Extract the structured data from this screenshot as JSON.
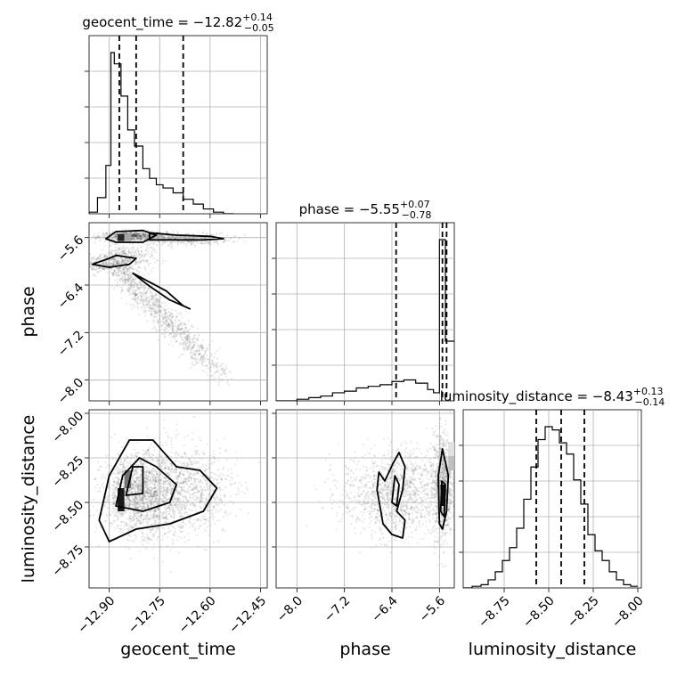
{
  "chart_data": {
    "type": "corner",
    "parameters": [
      "geocent_time",
      "phase",
      "luminosity_distance"
    ],
    "titles": [
      {
        "param": "geocent_time",
        "lhs": "geocent_time = ",
        "value": "−12.82",
        "plus": "+0.14",
        "minus": "−0.05"
      },
      {
        "param": "phase",
        "lhs": "phase = ",
        "value": "−5.55",
        "plus": "+0.07",
        "minus": "−0.78"
      },
      {
        "param": "luminosity_distance",
        "lhs": "luminosity_distance = ",
        "value": "−8.43",
        "plus": "+0.13",
        "minus": "−0.14"
      }
    ],
    "axes": {
      "geocent_time": {
        "range": [
          -12.96,
          -12.43
        ],
        "ticks": [
          -12.9,
          -12.75,
          -12.6,
          -12.45
        ],
        "tick_labels": [
          "−12.90",
          "−12.75",
          "−12.60",
          "−12.45"
        ]
      },
      "phase": {
        "range": [
          -8.35,
          -5.35
        ],
        "ticks": [
          -8.0,
          -7.2,
          -6.4,
          -5.6
        ],
        "tick_labels": [
          "−8.0",
          "−7.2",
          "−6.4",
          "−5.6"
        ]
      },
      "luminosity_distance": {
        "range": [
          -8.98,
          -7.98
        ],
        "ticks": [
          -8.75,
          -8.5,
          -8.25,
          -8.0
        ],
        "tick_labels": [
          "−8.75",
          "−8.50",
          "−8.25",
          "−8.00"
        ]
      }
    },
    "histograms": {
      "geocent_time": {
        "bin_edges": [
          -12.96,
          -12.935,
          -12.91,
          -12.895,
          -12.885,
          -12.865,
          -12.845,
          -12.825,
          -12.8,
          -12.78,
          -12.76,
          -12.74,
          -12.71,
          -12.68,
          -12.65,
          -12.62,
          -12.59,
          -12.56,
          -12.53
        ],
        "counts": [
          0.01,
          0.1,
          0.3,
          1.0,
          0.93,
          0.73,
          0.52,
          0.42,
          0.28,
          0.22,
          0.18,
          0.16,
          0.13,
          0.09,
          0.06,
          0.03,
          0.01,
          0.0
        ],
        "quantiles": [
          -12.87,
          -12.82,
          -12.68
        ]
      },
      "phase": {
        "bin_edges": [
          -8.35,
          -8.0,
          -7.8,
          -7.6,
          -7.4,
          -7.2,
          -7.0,
          -6.8,
          -6.6,
          -6.4,
          -6.2,
          -6.0,
          -5.8,
          -5.7,
          -5.6,
          -5.5,
          -5.35
        ],
        "counts": [
          0.0,
          0.01,
          0.02,
          0.03,
          0.05,
          0.06,
          0.08,
          0.09,
          0.1,
          0.12,
          0.13,
          0.11,
          0.07,
          0.05,
          1.0,
          0.37
        ],
        "quantiles": [
          -6.33,
          -5.55,
          -5.48
        ]
      },
      "luminosity_distance": {
        "bin_edges": [
          -8.98,
          -8.93,
          -8.88,
          -8.84,
          -8.8,
          -8.76,
          -8.72,
          -8.68,
          -8.64,
          -8.6,
          -8.56,
          -8.52,
          -8.48,
          -8.44,
          -8.4,
          -8.36,
          -8.32,
          -8.28,
          -8.24,
          -8.2,
          -8.16,
          -8.12,
          -8.08,
          -8.04,
          -8.0
        ],
        "counts": [
          0.0,
          0.01,
          0.02,
          0.05,
          0.1,
          0.17,
          0.25,
          0.37,
          0.55,
          0.75,
          0.92,
          1.0,
          0.98,
          0.9,
          0.83,
          0.67,
          0.52,
          0.33,
          0.23,
          0.17,
          0.1,
          0.05,
          0.02,
          0.01
        ],
        "quantiles": [
          -8.57,
          -8.43,
          -8.3
        ]
      }
    },
    "scatter_pairs": [
      {
        "x": "geocent_time",
        "y": "phase",
        "clusters": [
          {
            "type": "blob",
            "cx": -12.83,
            "cy": -5.58,
            "sx": 0.05,
            "sy": 0.04,
            "n": 700
          },
          {
            "type": "blob",
            "cx": -12.68,
            "cy": -5.62,
            "sx": 0.07,
            "sy": 0.05,
            "n": 450
          },
          {
            "type": "blob",
            "cx": -12.85,
            "cy": -5.95,
            "sx": 0.04,
            "sy": 0.12,
            "n": 350
          },
          {
            "type": "blob",
            "cx": -12.93,
            "cy": -6.05,
            "sx": 0.03,
            "sy": 0.08,
            "n": 200
          },
          {
            "type": "line",
            "x0": -12.89,
            "y0": -6.05,
            "x1": -12.63,
            "y1": -7.55,
            "width": 0.045,
            "n": 900
          },
          {
            "type": "line",
            "x0": -12.63,
            "y0": -7.5,
            "x1": -12.55,
            "y1": -7.95,
            "width": 0.04,
            "n": 120
          }
        ],
        "contours": [
          [
            [
              -12.88,
              -5.5
            ],
            [
              -12.8,
              -5.48
            ],
            [
              -12.76,
              -5.56
            ],
            [
              -12.8,
              -5.68
            ],
            [
              -12.88,
              -5.68
            ],
            [
              -12.91,
              -5.62
            ],
            [
              -12.88,
              -5.5
            ]
          ],
          [
            [
              -12.78,
              -5.52
            ],
            [
              -12.7,
              -5.56
            ],
            [
              -12.6,
              -5.58
            ],
            [
              -12.56,
              -5.62
            ],
            [
              -12.62,
              -5.64
            ],
            [
              -12.7,
              -5.64
            ],
            [
              -12.78,
              -5.64
            ],
            [
              -12.78,
              -5.52
            ]
          ],
          [
            [
              -12.88,
              -5.9
            ],
            [
              -12.82,
              -5.95
            ],
            [
              -12.84,
              -6.05
            ],
            [
              -12.9,
              -6.1
            ],
            [
              -12.95,
              -6.05
            ],
            [
              -12.9,
              -5.95
            ],
            [
              -12.88,
              -5.9
            ]
          ],
          [
            [
              -12.83,
              -6.2
            ],
            [
              -12.73,
              -6.5
            ],
            [
              -12.68,
              -6.75
            ],
            [
              -12.66,
              -6.8
            ],
            [
              -12.72,
              -6.65
            ],
            [
              -12.78,
              -6.42
            ],
            [
              -12.83,
              -6.2
            ]
          ]
        ],
        "hist2d_cells": [
          {
            "x0": -12.875,
            "x1": -12.855,
            "y0": -5.66,
            "y1": -5.54,
            "shade": 0.85
          },
          {
            "x0": -12.855,
            "x1": -12.835,
            "y0": -5.66,
            "y1": -5.54,
            "shade": 0.35
          }
        ]
      },
      {
        "x": "geocent_time",
        "y": "luminosity_distance",
        "clusters": [
          {
            "type": "blob",
            "cx": -12.82,
            "cy": -8.45,
            "sx": 0.05,
            "sy": 0.11,
            "n": 1400
          },
          {
            "type": "blob",
            "cx": -12.72,
            "cy": -8.45,
            "sx": 0.06,
            "sy": 0.13,
            "n": 900
          },
          {
            "type": "blob",
            "cx": -12.62,
            "cy": -8.42,
            "sx": 0.05,
            "sy": 0.12,
            "n": 400
          }
        ],
        "contours": [
          [
            [
              -12.93,
              -8.6
            ],
            [
              -12.9,
              -8.35
            ],
            [
              -12.84,
              -8.15
            ],
            [
              -12.77,
              -8.15
            ],
            [
              -12.7,
              -8.3
            ],
            [
              -12.63,
              -8.32
            ],
            [
              -12.58,
              -8.42
            ],
            [
              -12.62,
              -8.55
            ],
            [
              -12.72,
              -8.62
            ],
            [
              -12.82,
              -8.65
            ],
            [
              -12.9,
              -8.72
            ],
            [
              -12.93,
              -8.6
            ]
          ],
          [
            [
              -12.88,
              -8.52
            ],
            [
              -12.86,
              -8.35
            ],
            [
              -12.81,
              -8.25
            ],
            [
              -12.76,
              -8.3
            ],
            [
              -12.7,
              -8.4
            ],
            [
              -12.72,
              -8.5
            ],
            [
              -12.8,
              -8.55
            ],
            [
              -12.88,
              -8.52
            ]
          ],
          [
            [
              -12.85,
              -8.46
            ],
            [
              -12.83,
              -8.3
            ],
            [
              -12.8,
              -8.3
            ],
            [
              -12.8,
              -8.45
            ],
            [
              -12.85,
              -8.46
            ]
          ]
        ],
        "hist2d_cells": [
          {
            "x0": -12.875,
            "x1": -12.855,
            "y0": -8.55,
            "y1": -8.42,
            "shade": 0.9
          },
          {
            "x0": -12.855,
            "x1": -12.835,
            "y0": -8.42,
            "y1": -8.32,
            "shade": 0.55
          }
        ]
      },
      {
        "x": "phase",
        "y": "luminosity_distance",
        "clusters": [
          {
            "type": "blob",
            "cx": -6.35,
            "cy": -8.45,
            "sx": 0.45,
            "sy": 0.12,
            "n": 1300
          },
          {
            "type": "blob",
            "cx": -5.55,
            "cy": -8.4,
            "sx": 0.08,
            "sy": 0.15,
            "n": 900
          }
        ],
        "contours": [
          [
            [
              -6.65,
              -8.43
            ],
            [
              -6.62,
              -8.33
            ],
            [
              -6.52,
              -8.38
            ],
            [
              -6.38,
              -8.28
            ],
            [
              -6.28,
              -8.22
            ],
            [
              -6.18,
              -8.3
            ],
            [
              -6.22,
              -8.43
            ],
            [
              -6.32,
              -8.55
            ],
            [
              -6.18,
              -8.6
            ],
            [
              -6.22,
              -8.7
            ],
            [
              -6.4,
              -8.68
            ],
            [
              -6.55,
              -8.62
            ],
            [
              -6.65,
              -8.43
            ]
          ],
          [
            [
              -6.4,
              -8.5
            ],
            [
              -6.35,
              -8.35
            ],
            [
              -6.28,
              -8.4
            ],
            [
              -6.32,
              -8.52
            ],
            [
              -6.4,
              -8.5
            ]
          ],
          [
            [
              -5.6,
              -8.62
            ],
            [
              -5.62,
              -8.35
            ],
            [
              -5.55,
              -8.2
            ],
            [
              -5.45,
              -8.35
            ],
            [
              -5.48,
              -8.55
            ],
            [
              -5.55,
              -8.65
            ],
            [
              -5.6,
              -8.62
            ]
          ],
          [
            [
              -5.58,
              -8.55
            ],
            [
              -5.56,
              -8.38
            ],
            [
              -5.5,
              -8.4
            ],
            [
              -5.52,
              -8.58
            ],
            [
              -5.58,
              -8.55
            ]
          ]
        ],
        "hist2d_cells": [
          {
            "x0": -5.58,
            "x1": -5.5,
            "y0": -8.52,
            "y1": -8.4,
            "shade": 0.95
          },
          {
            "x0": -5.45,
            "x1": -5.35,
            "y0": -8.32,
            "y1": -8.2,
            "shade": 0.25
          },
          {
            "x0": -5.45,
            "x1": -5.35,
            "y0": -8.24,
            "y1": -8.16,
            "shade": 0.12
          }
        ]
      }
    ]
  }
}
